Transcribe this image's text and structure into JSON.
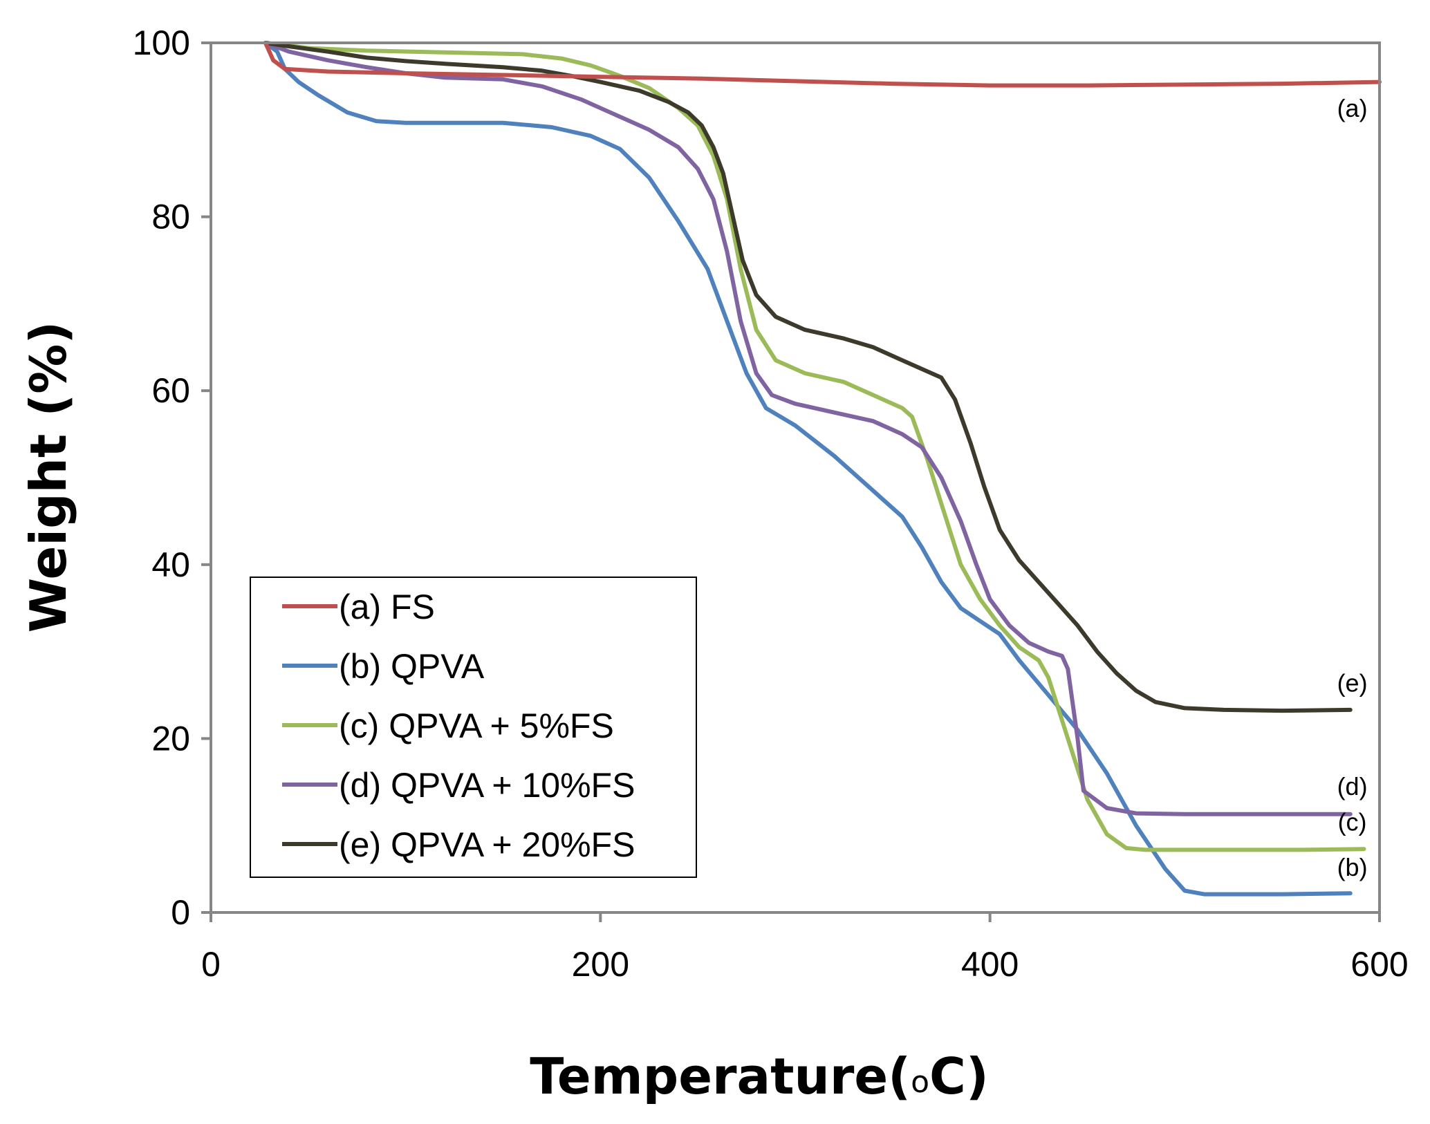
{
  "chart_data": {
    "type": "line",
    "title": "",
    "xlabel": "Temperature(",
    "xlabel_degree": "o",
    "xlabel_unit": "C)",
    "ylabel": "Weight (%)",
    "xlim": [
      0,
      600
    ],
    "ylim": [
      0,
      100
    ],
    "xticks": [
      0,
      200,
      400,
      600
    ],
    "yticks": [
      0,
      20,
      40,
      60,
      80,
      100
    ],
    "xtick_labels": [
      "0",
      "200",
      "400",
      "600"
    ],
    "ytick_labels": [
      "0",
      "20",
      "40",
      "60",
      "80",
      "100"
    ],
    "grid": false,
    "legend_position": "bottom-left",
    "series": [
      {
        "key": "a",
        "name": "(a) FS",
        "end_label": "(a)",
        "color": "#c0504d",
        "points": [
          [
            28,
            100
          ],
          [
            32,
            98
          ],
          [
            38,
            97
          ],
          [
            60,
            96.7
          ],
          [
            100,
            96.5
          ],
          [
            150,
            96.3
          ],
          [
            200,
            96.1
          ],
          [
            250,
            95.9
          ],
          [
            300,
            95.6
          ],
          [
            350,
            95.3
          ],
          [
            400,
            95.1
          ],
          [
            450,
            95.1
          ],
          [
            500,
            95.2
          ],
          [
            550,
            95.3
          ],
          [
            600,
            95.5
          ]
        ]
      },
      {
        "key": "b",
        "name": "(b) QPVA",
        "end_label": "(b)",
        "color": "#4f81bd",
        "points": [
          [
            28,
            100
          ],
          [
            34,
            99
          ],
          [
            38,
            97
          ],
          [
            45,
            95.5
          ],
          [
            55,
            94
          ],
          [
            70,
            92
          ],
          [
            85,
            91
          ],
          [
            100,
            90.8
          ],
          [
            130,
            90.8
          ],
          [
            150,
            90.8
          ],
          [
            175,
            90.3
          ],
          [
            195,
            89.3
          ],
          [
            210,
            87.8
          ],
          [
            225,
            84.5
          ],
          [
            240,
            79.5
          ],
          [
            255,
            74
          ],
          [
            265,
            68
          ],
          [
            275,
            62
          ],
          [
            285,
            58
          ],
          [
            300,
            56
          ],
          [
            320,
            52.5
          ],
          [
            340,
            48.5
          ],
          [
            355,
            45.5
          ],
          [
            365,
            42
          ],
          [
            375,
            38
          ],
          [
            385,
            35
          ],
          [
            395,
            33.5
          ],
          [
            405,
            32
          ],
          [
            415,
            29
          ],
          [
            430,
            25
          ],
          [
            445,
            21
          ],
          [
            460,
            16
          ],
          [
            475,
            10
          ],
          [
            490,
            5
          ],
          [
            500,
            2.5
          ],
          [
            510,
            2.1
          ],
          [
            530,
            2.1
          ],
          [
            550,
            2.1
          ],
          [
            585,
            2.2
          ]
        ]
      },
      {
        "key": "c",
        "name": "(c) QPVA + 5%FS",
        "end_label": "(c)",
        "color": "#9bbb59",
        "points": [
          [
            28,
            100
          ],
          [
            50,
            99.4
          ],
          [
            80,
            99.1
          ],
          [
            120,
            98.9
          ],
          [
            160,
            98.7
          ],
          [
            180,
            98.2
          ],
          [
            195,
            97.4
          ],
          [
            210,
            96.2
          ],
          [
            225,
            94.8
          ],
          [
            240,
            92.5
          ],
          [
            250,
            90.5
          ],
          [
            258,
            87
          ],
          [
            265,
            82
          ],
          [
            272,
            74
          ],
          [
            280,
            67
          ],
          [
            290,
            63.5
          ],
          [
            305,
            62
          ],
          [
            325,
            61
          ],
          [
            340,
            59.5
          ],
          [
            355,
            58
          ],
          [
            360,
            57
          ],
          [
            368,
            52
          ],
          [
            375,
            47
          ],
          [
            385,
            40
          ],
          [
            395,
            36
          ],
          [
            405,
            33
          ],
          [
            415,
            30.5
          ],
          [
            425,
            29
          ],
          [
            430,
            27
          ],
          [
            440,
            20
          ],
          [
            450,
            13
          ],
          [
            460,
            9
          ],
          [
            470,
            7.4
          ],
          [
            480,
            7.2
          ],
          [
            520,
            7.2
          ],
          [
            560,
            7.2
          ],
          [
            592,
            7.3
          ]
        ]
      },
      {
        "key": "d",
        "name": "(d) QPVA + 10%FS",
        "end_label": "(d)",
        "color": "#8064a2",
        "points": [
          [
            28,
            100
          ],
          [
            40,
            99
          ],
          [
            60,
            98
          ],
          [
            80,
            97.2
          ],
          [
            100,
            96.5
          ],
          [
            120,
            96
          ],
          [
            150,
            95.8
          ],
          [
            170,
            95
          ],
          [
            190,
            93.5
          ],
          [
            210,
            91.5
          ],
          [
            225,
            90
          ],
          [
            240,
            88
          ],
          [
            250,
            85.5
          ],
          [
            258,
            82
          ],
          [
            265,
            76
          ],
          [
            272,
            68
          ],
          [
            280,
            62
          ],
          [
            288,
            59.5
          ],
          [
            300,
            58.5
          ],
          [
            320,
            57.5
          ],
          [
            340,
            56.5
          ],
          [
            355,
            55
          ],
          [
            365,
            53.5
          ],
          [
            375,
            50
          ],
          [
            385,
            45
          ],
          [
            393,
            40
          ],
          [
            400,
            36
          ],
          [
            410,
            33
          ],
          [
            420,
            31
          ],
          [
            430,
            30
          ],
          [
            437,
            29.5
          ],
          [
            440,
            28
          ],
          [
            445,
            20
          ],
          [
            448,
            14
          ],
          [
            460,
            12
          ],
          [
            475,
            11.4
          ],
          [
            500,
            11.3
          ],
          [
            540,
            11.3
          ],
          [
            585,
            11.3
          ]
        ]
      },
      {
        "key": "e",
        "name": "(e) QPVA + 20%FS",
        "end_label": "(e)",
        "color": "#3d3a2b",
        "points": [
          [
            28,
            100
          ],
          [
            40,
            99.6
          ],
          [
            60,
            99
          ],
          [
            80,
            98.3
          ],
          [
            100,
            97.9
          ],
          [
            120,
            97.6
          ],
          [
            150,
            97.2
          ],
          [
            170,
            96.8
          ],
          [
            185,
            96.2
          ],
          [
            200,
            95.5
          ],
          [
            220,
            94.5
          ],
          [
            235,
            93.2
          ],
          [
            245,
            92
          ],
          [
            252,
            90.5
          ],
          [
            258,
            88
          ],
          [
            263,
            85
          ],
          [
            268,
            80
          ],
          [
            273,
            75
          ],
          [
            280,
            71
          ],
          [
            290,
            68.5
          ],
          [
            305,
            67
          ],
          [
            325,
            66
          ],
          [
            340,
            65
          ],
          [
            355,
            63.5
          ],
          [
            365,
            62.5
          ],
          [
            375,
            61.5
          ],
          [
            382,
            59
          ],
          [
            390,
            54
          ],
          [
            397,
            49
          ],
          [
            405,
            44
          ],
          [
            415,
            40.5
          ],
          [
            425,
            38
          ],
          [
            435,
            35.5
          ],
          [
            445,
            33
          ],
          [
            455,
            30
          ],
          [
            465,
            27.5
          ],
          [
            475,
            25.5
          ],
          [
            485,
            24.2
          ],
          [
            500,
            23.5
          ],
          [
            520,
            23.3
          ],
          [
            550,
            23.2
          ],
          [
            585,
            23.3
          ]
        ]
      }
    ]
  }
}
